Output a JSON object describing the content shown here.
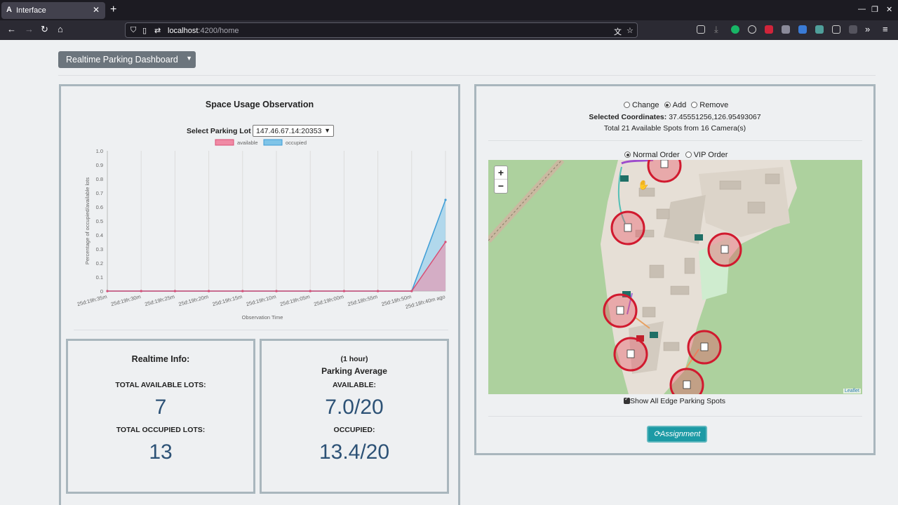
{
  "browser": {
    "tab_title": "Interface",
    "tab_icon": "A",
    "url_host": "localhost",
    "url_rest": ":4200/home"
  },
  "page": {
    "dashboard_dropdown": "Realtime Parking Dashboard"
  },
  "chart_panel": {
    "title": "Space Usage Observation",
    "select_label": "Select Parking Lot",
    "select_value": "147.46.67.14:20353"
  },
  "chart_data": {
    "type": "area",
    "title": "",
    "xlabel": "Observation Time",
    "ylabel": "Percentage of occupied/available lots",
    "ylim": [
      0,
      1.0
    ],
    "y_ticks": [
      "0",
      "0.1",
      "0.2",
      "0.3",
      "0.4",
      "0.5",
      "0.6",
      "0.7",
      "0.8",
      "0.9",
      "1.0"
    ],
    "categories": [
      "25d:19h:35m",
      "25d:19h:30m",
      "25d:19h:25m",
      "25d:19h:20m",
      "25d:19h:15m",
      "25d:19h:10m",
      "25d:19h:05m",
      "25d:19h:00m",
      "25d:18h:55m",
      "25d:18h:50m",
      "25d:18h:40m ago"
    ],
    "series": [
      {
        "name": "available",
        "color": "#f08aa5",
        "values": [
          0,
          0,
          0,
          0,
          0,
          0,
          0,
          0,
          0,
          0,
          0.35
        ]
      },
      {
        "name": "occupied",
        "color": "#7fc4e8",
        "values": [
          0,
          0,
          0,
          0,
          0,
          0,
          0,
          0,
          0,
          0,
          0.65
        ]
      }
    ],
    "legend": "top-center",
    "grid": true
  },
  "realtime_info": {
    "title": "Realtime Info:",
    "available_label": "TOTAL AVAILABLE LOTS:",
    "available_value": "7",
    "occupied_label": "TOTAL OCCUPIED LOTS:",
    "occupied_value": "13"
  },
  "parking_average": {
    "period": "(1 hour)",
    "title": "Parking Average",
    "available_label": "AVAILABLE:",
    "available_value": "7.0/20",
    "occupied_label": "OCCUPIED:",
    "occupied_value": "13.4/20"
  },
  "map_panel": {
    "mode_options": [
      "Change",
      "Add",
      "Remove"
    ],
    "mode_selected": "Add",
    "coords_label": "Selected Coordinates:",
    "coords_value": "37.45551256,126.95493067",
    "spots_text": "Total 21 Available Spots from 16 Camera(s)",
    "order_options": [
      "Normal Order",
      "VIP Order"
    ],
    "order_selected": "Normal Order",
    "zoom_in": "+",
    "zoom_out": "−",
    "attribution": "Leaflet",
    "edge_checkbox_label": "Show All Edge Parking Spots",
    "assign_button": "Assignment"
  }
}
